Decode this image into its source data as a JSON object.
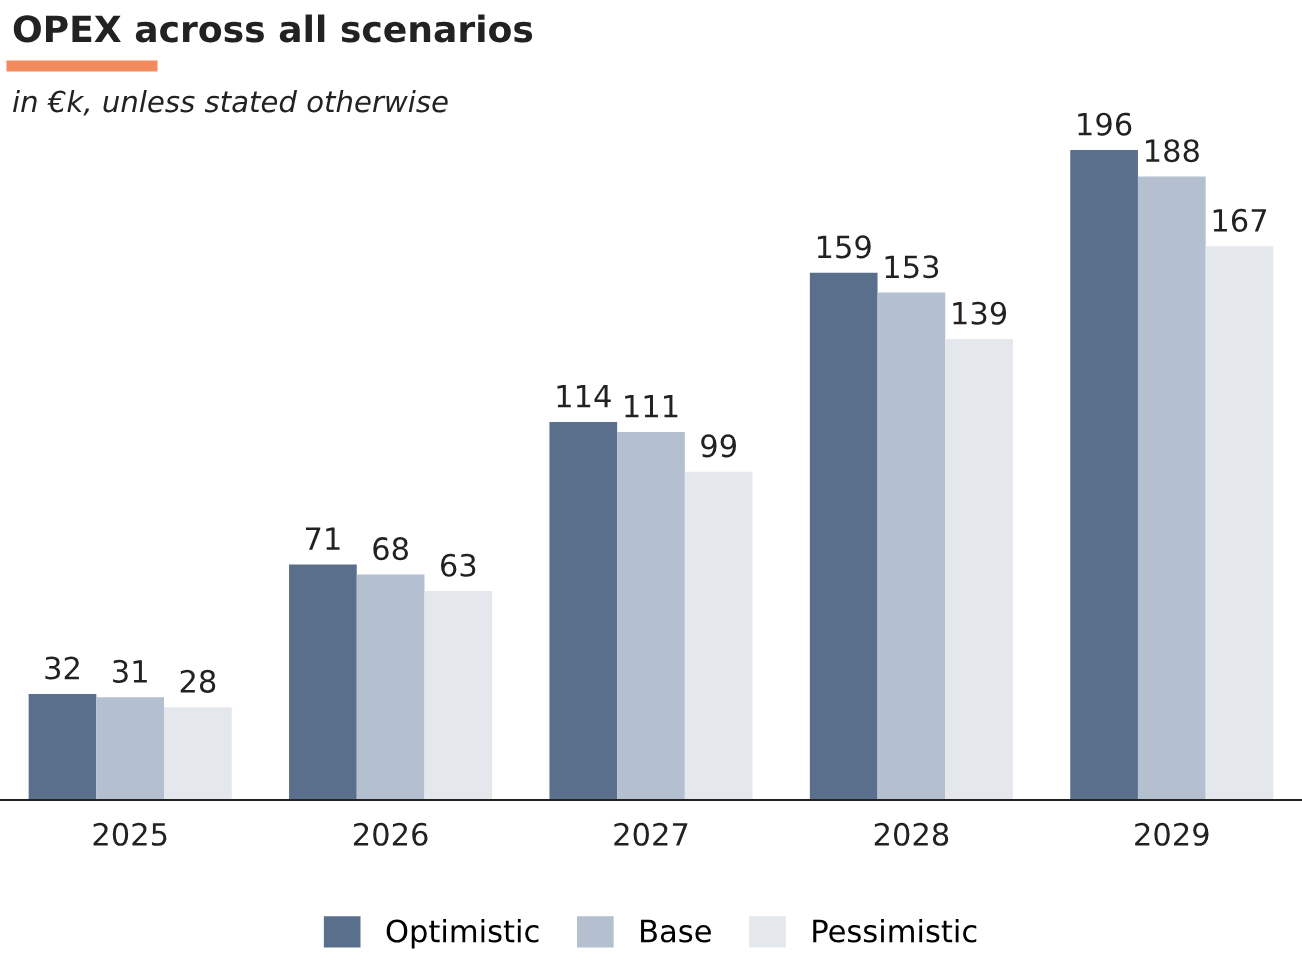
{
  "chart_data": {
    "type": "bar",
    "title": "OPEX across all scenarios",
    "subtitle": "in €k, unless stated otherwise",
    "categories": [
      "2025",
      "2026",
      "2027",
      "2028",
      "2029"
    ],
    "series": [
      {
        "name": "Optimistic",
        "color": "#5a6f8c",
        "values": [
          32,
          71,
          114,
          159,
          196
        ]
      },
      {
        "name": "Base",
        "color": "#b4bfcf",
        "values": [
          31,
          68,
          111,
          153,
          188
        ]
      },
      {
        "name": "Pessimistic",
        "color": "#e4e7ec",
        "values": [
          28,
          63,
          99,
          139,
          167
        ]
      }
    ],
    "data_labels": true,
    "legend": "bottom",
    "grid": false
  }
}
